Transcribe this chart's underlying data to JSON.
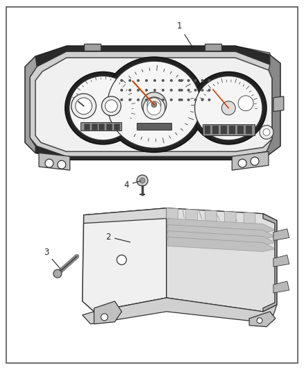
{
  "background_color": "#ffffff",
  "border_color": "#555555",
  "border_linewidth": 1.2,
  "label_fontsize": 8.5,
  "label_color": "#222222",
  "line_color": "#333333",
  "line_width": 0.9,
  "dark_fill": "#404040",
  "mid_fill": "#888888",
  "light_fill": "#e8e8e8",
  "white_fill": "#f8f8f8",
  "gray_fill": "#cccccc"
}
